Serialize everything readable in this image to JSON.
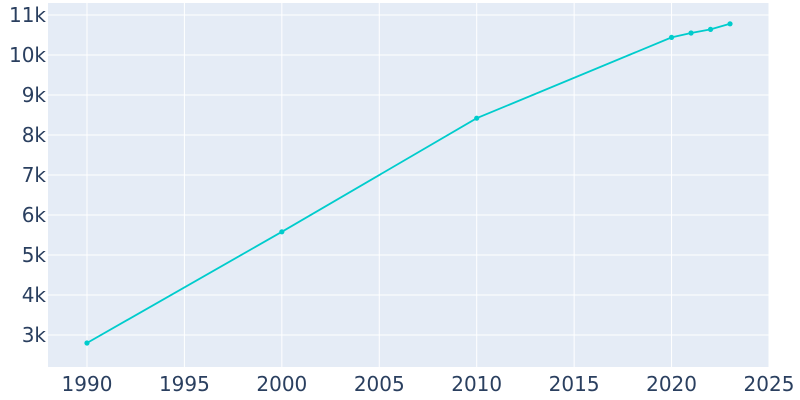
{
  "chart_data": {
    "type": "line",
    "x": [
      1990,
      2000,
      2010,
      2020,
      2021,
      2022,
      2023
    ],
    "series": [
      {
        "values": [
          2800,
          5580,
          8420,
          10440,
          10550,
          10640,
          10780
        ]
      }
    ],
    "xlim": [
      1988,
      2025
    ],
    "ylim": [
      2200,
      11300
    ],
    "x_ticks": [
      1990,
      1995,
      2000,
      2005,
      2010,
      2015,
      2020,
      2025
    ],
    "y_ticks": [
      3000,
      4000,
      5000,
      6000,
      7000,
      8000,
      9000,
      10000,
      11000
    ],
    "x_tick_labels": [
      "1990",
      "1995",
      "2000",
      "2005",
      "2010",
      "2015",
      "2020",
      "2025"
    ],
    "y_tick_labels": [
      "3k",
      "4k",
      "5k",
      "6k",
      "7k",
      "8k",
      "9k",
      "10k",
      "11k"
    ],
    "grid": true,
    "colors": {
      "line": "#00cccc",
      "plot_background": "#e5ecf6",
      "grid": "#ffffff",
      "tick_text": "#2a3f5f"
    }
  }
}
